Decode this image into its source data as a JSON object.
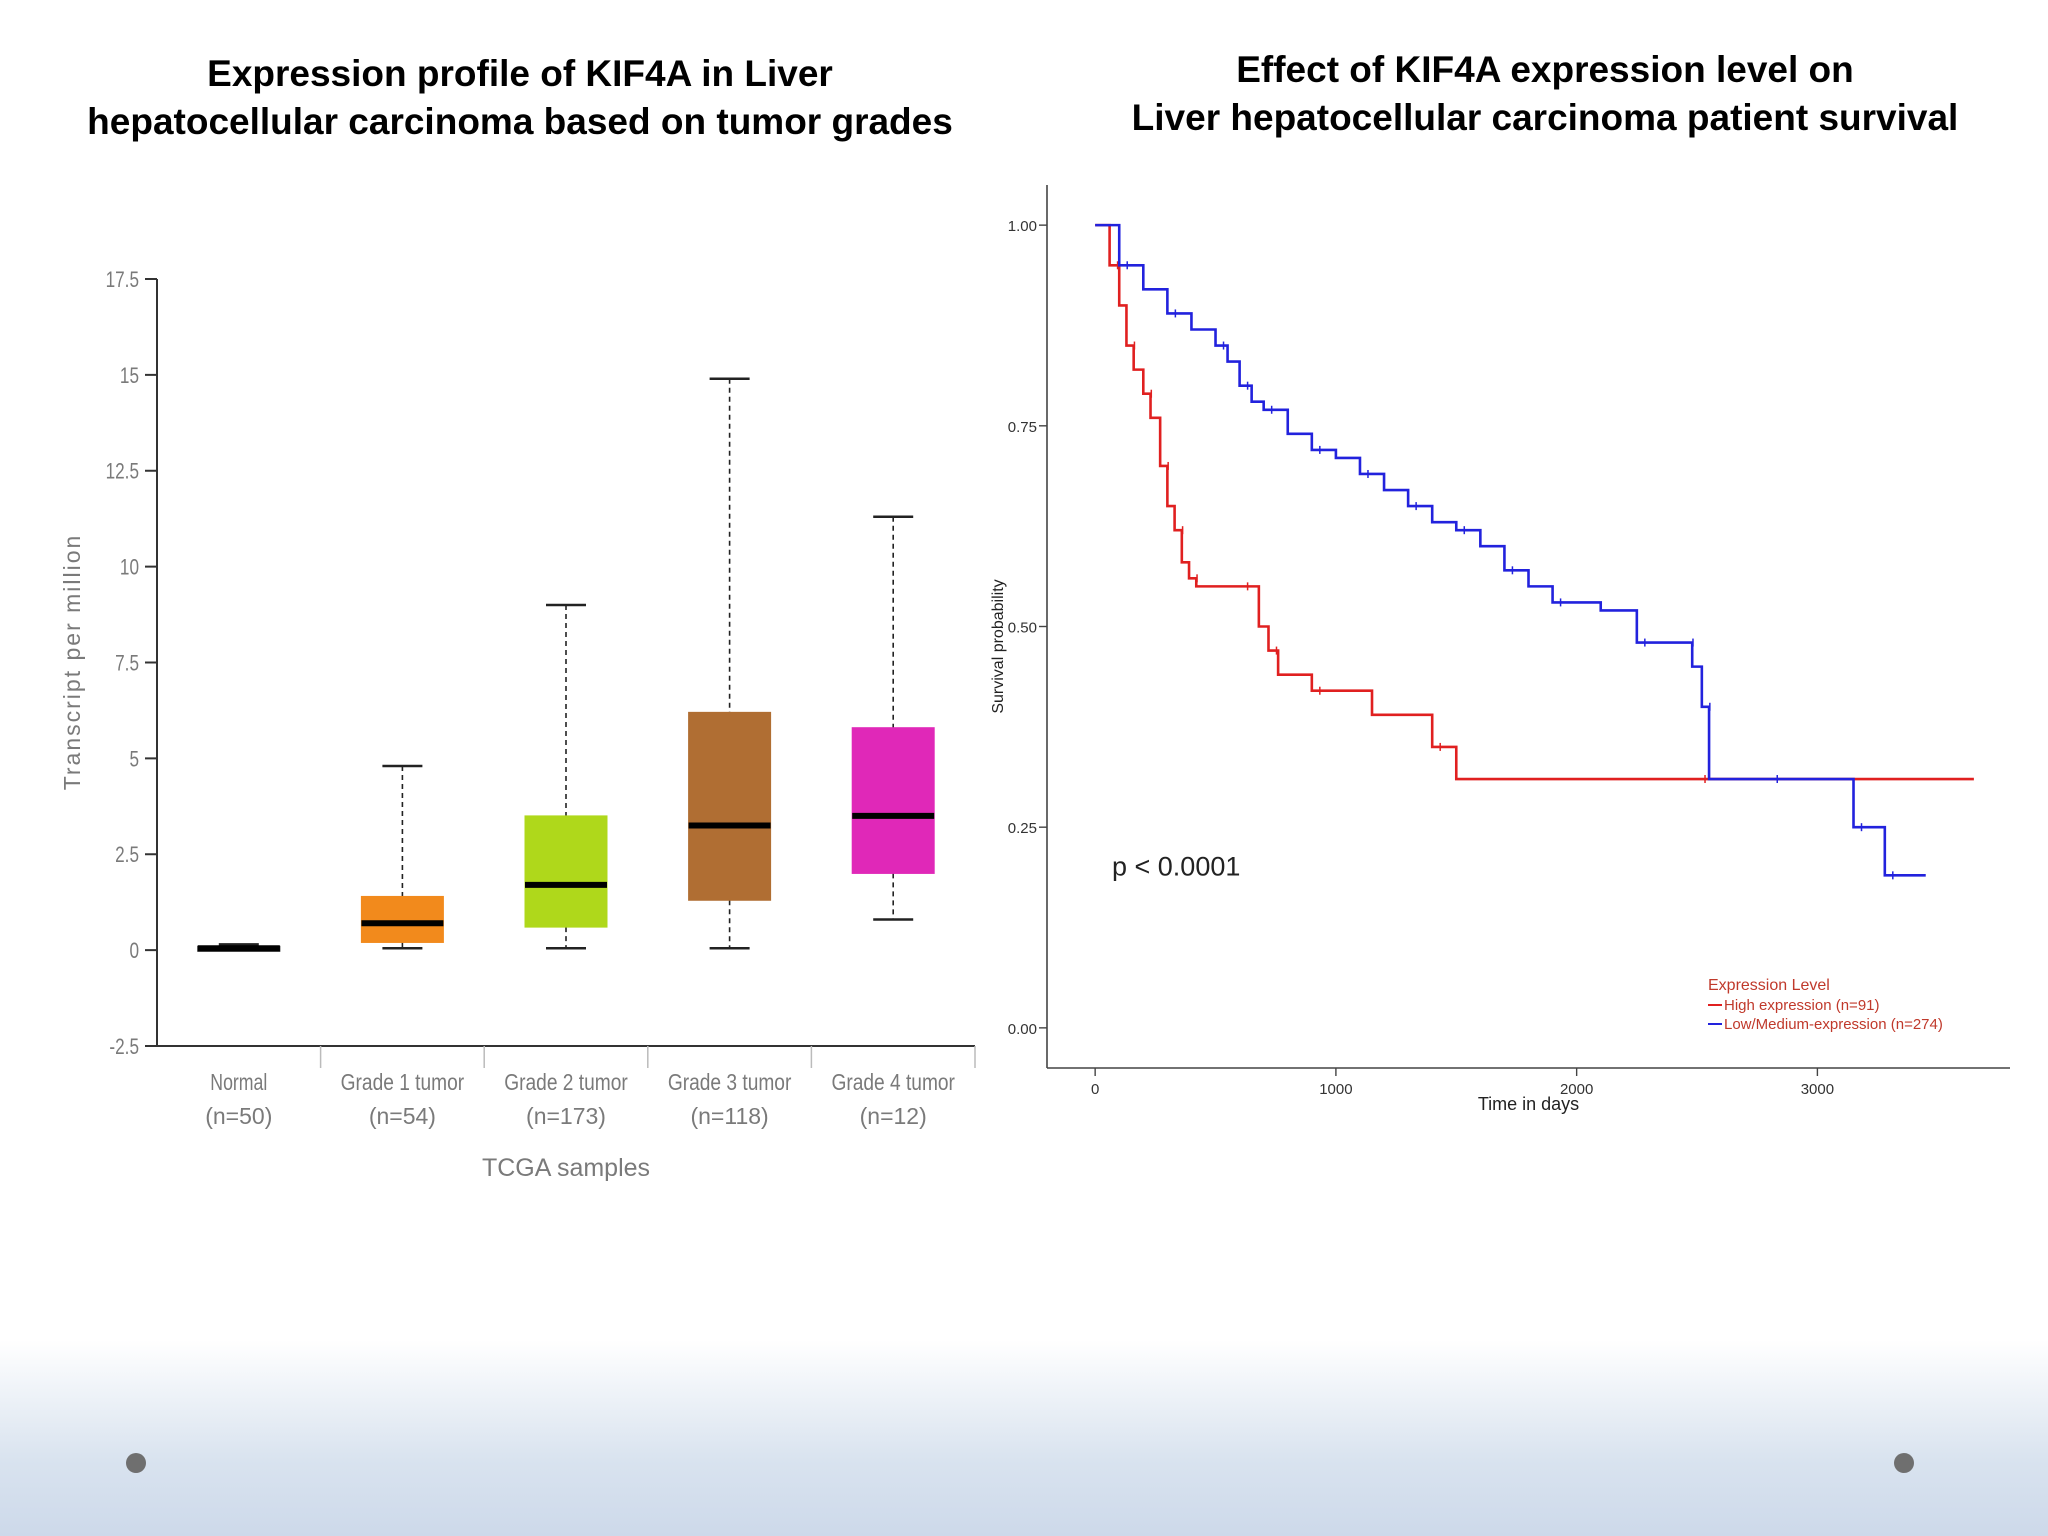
{
  "slide": {
    "left_title_line1": "Expression profile of KIF4A in Liver",
    "left_title_line2": "hepatocellular carcinoma based on tumor grades",
    "right_title_line1": "Effect of  KIF4A expression level on",
    "right_title_line2": "Liver hepatocellular carcinoma patient survival"
  },
  "chart_data": [
    {
      "type": "box",
      "title": "Expression profile of KIF4A in Liver hepatocellular carcinoma based on tumor grades",
      "xlabel": "TCGA samples",
      "ylabel": "Transcript per million",
      "ylim": [
        -2.5,
        17.5
      ],
      "yticks": [
        "-2.5",
        "0",
        "2.5",
        "5",
        "7.5",
        "10",
        "12.5",
        "15",
        "17.5"
      ],
      "categories": [
        {
          "name": "Normal",
          "n": "(n=50)",
          "min": 0.0,
          "q1": 0.0,
          "median": 0.05,
          "q3": 0.1,
          "max": 0.15,
          "color": "#1a1a1a"
        },
        {
          "name": "Grade 1 tumor",
          "n": "(n=54)",
          "min": 0.05,
          "q1": 0.2,
          "median": 0.7,
          "q3": 1.4,
          "max": 4.8,
          "color": "#f28a1c"
        },
        {
          "name": "Grade 2 tumor",
          "n": "(n=173)",
          "min": 0.05,
          "q1": 0.6,
          "median": 1.7,
          "q3": 3.5,
          "max": 9.0,
          "color": "#afd81b"
        },
        {
          "name": "Grade 3 tumor",
          "n": "(n=118)",
          "min": 0.05,
          "q1": 1.3,
          "median": 3.25,
          "q3": 6.2,
          "max": 14.9,
          "color": "#b06e33"
        },
        {
          "name": "Grade 4 tumor",
          "n": "(n=12)",
          "min": 0.8,
          "q1": 2.0,
          "median": 3.5,
          "q3": 5.8,
          "max": 11.3,
          "color": "#e028b8"
        }
      ]
    },
    {
      "type": "line",
      "title": "Effect of KIF4A expression level on Liver hepatocellular carcinoma patient survival",
      "xlabel": "Time in days",
      "ylabel": "Survival probability",
      "xlim": [
        -200,
        3800
      ],
      "ylim": [
        -0.05,
        1.05
      ],
      "xticks": [
        "0",
        "1000",
        "2000",
        "3000"
      ],
      "yticks": [
        "0.00",
        "0.25",
        "0.50",
        "0.75",
        "1.00"
      ],
      "annotation": "p < 0.0001",
      "legend_title": "Expression Level",
      "legend_position": "bottom-right",
      "series": [
        {
          "name": "High expression (n=91)",
          "color": "#e02020",
          "x": [
            0,
            60,
            100,
            130,
            160,
            200,
            230,
            270,
            300,
            330,
            360,
            390,
            420,
            600,
            680,
            720,
            760,
            900,
            1150,
            1400,
            1500,
            2500,
            3650
          ],
          "y": [
            1.0,
            0.95,
            0.9,
            0.85,
            0.82,
            0.79,
            0.76,
            0.7,
            0.65,
            0.62,
            0.58,
            0.56,
            0.55,
            0.55,
            0.5,
            0.47,
            0.44,
            0.42,
            0.39,
            0.35,
            0.31,
            0.31,
            0.31
          ]
        },
        {
          "name": "Low/Medium-expression (n=274)",
          "color": "#2222dd",
          "x": [
            0,
            100,
            200,
            300,
            400,
            500,
            550,
            600,
            650,
            700,
            800,
            900,
            1000,
            1100,
            1200,
            1300,
            1400,
            1500,
            1600,
            1700,
            1800,
            1900,
            2100,
            2250,
            2400,
            2450,
            2480,
            2520,
            2550,
            2800,
            3100,
            3150,
            3250,
            3280,
            3450
          ],
          "y": [
            1.0,
            0.95,
            0.92,
            0.89,
            0.87,
            0.85,
            0.83,
            0.8,
            0.78,
            0.77,
            0.74,
            0.72,
            0.71,
            0.69,
            0.67,
            0.65,
            0.63,
            0.62,
            0.6,
            0.57,
            0.55,
            0.53,
            0.52,
            0.48,
            0.48,
            0.48,
            0.45,
            0.4,
            0.31,
            0.31,
            0.31,
            0.25,
            0.25,
            0.19,
            0.19
          ]
        }
      ]
    }
  ]
}
